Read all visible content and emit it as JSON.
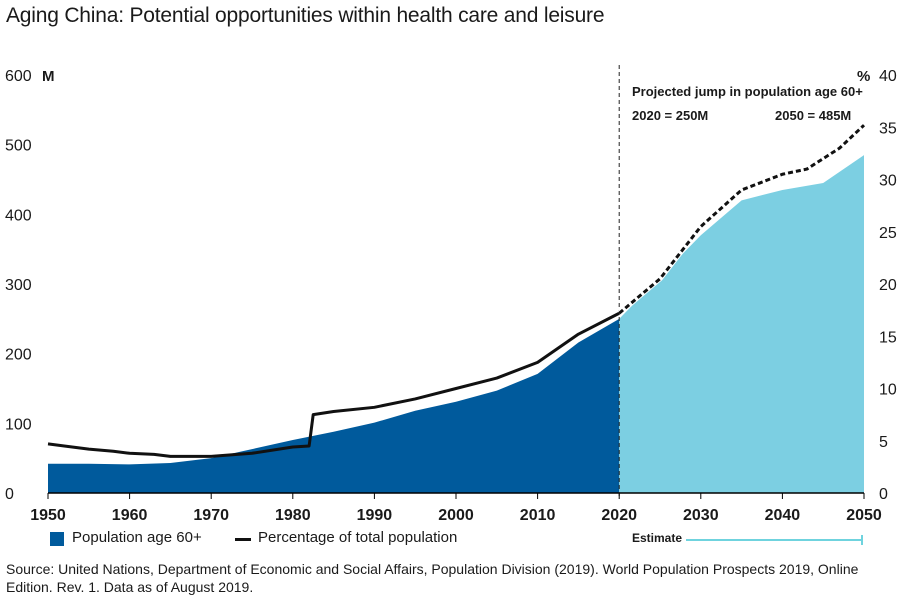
{
  "title": "Aging China: Potential opportunities within health care and leisure",
  "colors": {
    "historical_area": "#005a9c",
    "estimate_area": "#7ccfe2",
    "line": "#111111",
    "estimate_marker": "#6fd3de"
  },
  "chart_data": {
    "type": "area",
    "title": "Aging China: Potential opportunities within health care and leisure",
    "x_ticks": [
      "1950",
      "1960",
      "1970",
      "1980",
      "1990",
      "2000",
      "2010",
      "2020",
      "2030",
      "2040",
      "2050"
    ],
    "xlim": [
      1950,
      2050
    ],
    "y_left": {
      "unit": "M",
      "ylim": [
        0,
        600
      ],
      "ticks": [
        "0",
        "100",
        "200",
        "300",
        "400",
        "500",
        "600"
      ]
    },
    "y_right": {
      "unit": "%",
      "ylim": [
        0,
        40
      ],
      "ticks": [
        "0",
        "5",
        "10",
        "15",
        "20",
        "25",
        "30",
        "35",
        "40"
      ]
    },
    "split_year": 2020,
    "series": [
      {
        "name": "Population age 60+",
        "axis": "left",
        "x": [
          1950,
          1955,
          1960,
          1965,
          1970,
          1975,
          1980,
          1985,
          1990,
          1995,
          2000,
          2005,
          2010,
          2015,
          2020,
          2025,
          2030,
          2035,
          2040,
          2045,
          2050
        ],
        "values": [
          42,
          42,
          41,
          43,
          50,
          63,
          76,
          88,
          101,
          118,
          131,
          147,
          171,
          216,
          250,
          310,
          370,
          420,
          435,
          445,
          485
        ]
      },
      {
        "name": "Percentage of total population",
        "axis": "right",
        "x": [
          1950,
          1952,
          1955,
          1958,
          1960,
          1963,
          1965,
          1970,
          1975,
          1980,
          1982,
          1982.5,
          1985,
          1990,
          1995,
          2000,
          2005,
          2010,
          2015,
          2020,
          2025,
          2030,
          2035,
          2040,
          2043,
          2047,
          2050
        ],
        "values": [
          4.7,
          4.5,
          4.2,
          4.0,
          3.8,
          3.7,
          3.5,
          3.5,
          3.8,
          4.4,
          4.5,
          7.5,
          7.8,
          8.2,
          9.0,
          10.0,
          11.0,
          12.5,
          15.2,
          17.2,
          20.5,
          25.5,
          29.0,
          30.5,
          31.0,
          33.0,
          35.2
        ]
      }
    ],
    "annotations": [
      "Projected jump in population age 60+",
      "2020 = 250M",
      "2050 = 485M"
    ],
    "estimate_label": "Estimate",
    "grid": false,
    "legend": "bottom-left"
  },
  "legend": {
    "area_label": "Population age 60+",
    "line_label": "Percentage of total population"
  },
  "source": "Source: United Nations, Department of Economic and Social Affairs, Population Division (2019). World Population Prospects 2019, Online Edition. Rev. 1. Data as of August 2019."
}
